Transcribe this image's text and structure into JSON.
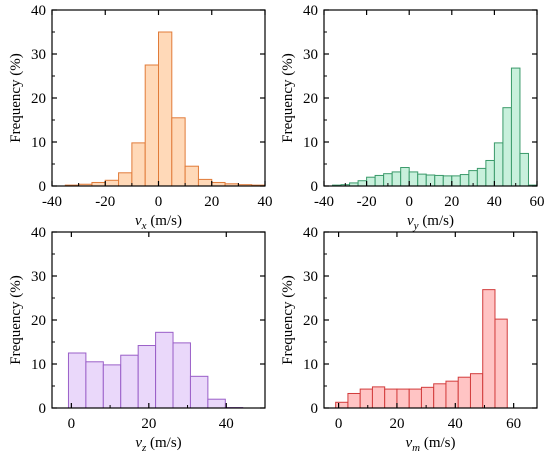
{
  "chart_data": [
    {
      "type": "bar",
      "xlabel_main": "v",
      "xlabel_sub": "x",
      "xlabel_unit": " (m/s)",
      "ylabel": "Frequency (%)",
      "xlim": [
        -40,
        40
      ],
      "ylim": [
        0,
        40
      ],
      "xticks": [
        -40,
        -20,
        0,
        20,
        40
      ],
      "yticks": [
        0,
        10,
        20,
        30,
        40
      ],
      "bin_width": 5,
      "bin_centers": [
        -32.5,
        -27.5,
        -22.5,
        -17.5,
        -12.5,
        -7.5,
        -2.5,
        2.5,
        7.5,
        12.5,
        17.5,
        22.5,
        27.5,
        32.5,
        37.5
      ],
      "values": [
        0.2,
        0.4,
        0.8,
        1.3,
        3.0,
        9.8,
        27.5,
        35.0,
        15.5,
        4.5,
        1.5,
        0.8,
        0.5,
        0.3,
        0.2
      ],
      "fill": "#ffd9b8",
      "stroke": "#e07b39",
      "grid": false
    },
    {
      "type": "bar",
      "xlabel_main": "v",
      "xlabel_sub": "y",
      "xlabel_unit": " (m/s)",
      "ylabel": "Frequency (%)",
      "xlim": [
        -40,
        60
      ],
      "ylim": [
        0,
        40
      ],
      "xticks": [
        -40,
        -20,
        0,
        20,
        40,
        60
      ],
      "yticks": [
        0,
        10,
        20,
        30,
        40
      ],
      "bin_width": 4,
      "bin_centers": [
        -34,
        -30,
        -26,
        -22,
        -18,
        -14,
        -10,
        -6,
        -2,
        2,
        6,
        10,
        14,
        18,
        22,
        26,
        30,
        34,
        38,
        42,
        46,
        50,
        54,
        58
      ],
      "values": [
        0.2,
        0.3,
        0.7,
        1.2,
        2.0,
        2.4,
        2.8,
        3.2,
        4.2,
        3.2,
        2.7,
        2.5,
        2.4,
        2.3,
        2.3,
        2.6,
        3.5,
        4.0,
        5.8,
        9.8,
        17.8,
        26.8,
        7.4,
        0.2
      ],
      "fill": "#c8f0dc",
      "stroke": "#3a9a6a",
      "grid": false
    },
    {
      "type": "bar",
      "xlabel_main": "v",
      "xlabel_sub": "z",
      "xlabel_unit": " (m/s)",
      "ylabel": "Frequency (%)",
      "xlim": [
        -5,
        50
      ],
      "ylim": [
        0,
        40
      ],
      "xticks": [
        0,
        20,
        40
      ],
      "yticks": [
        0,
        10,
        20,
        30,
        40
      ],
      "bin_width": 4.5,
      "bin_centers": [
        1.5,
        6,
        10.5,
        15,
        19.5,
        24,
        28.5,
        33,
        37.5,
        42,
        46.5
      ],
      "values": [
        12.5,
        10.5,
        9.8,
        12.0,
        14.2,
        17.2,
        14.8,
        7.2,
        2.0,
        0.1,
        0
      ],
      "fill": "#ead8fa",
      "stroke": "#9a5fc8",
      "grid": false
    },
    {
      "type": "bar",
      "xlabel_main": "v",
      "xlabel_sub": "m",
      "xlabel_unit": " (m/s)",
      "ylabel": "Frequency (%)",
      "xlim": [
        -5,
        68
      ],
      "ylim": [
        0,
        40
      ],
      "xticks": [
        0,
        20,
        40,
        60
      ],
      "yticks": [
        0,
        10,
        20,
        30,
        40
      ],
      "bin_width": 4.2,
      "bin_centers": [
        1.1,
        5.3,
        9.5,
        13.7,
        17.9,
        22.1,
        26.3,
        30.5,
        34.7,
        38.9,
        43.1,
        47.3,
        51.5,
        55.7,
        59.9
      ],
      "values": [
        1.3,
        3.3,
        4.3,
        4.8,
        4.3,
        4.3,
        4.3,
        4.7,
        5.5,
        6.1,
        7.0,
        7.8,
        26.9,
        20.2,
        0
      ],
      "fill": "#ffc4c4",
      "stroke": "#d23c3c",
      "grid": false
    }
  ]
}
